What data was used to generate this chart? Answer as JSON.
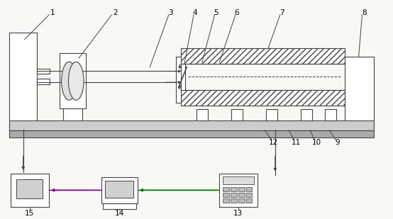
{
  "bg_color": "#f8f8f4",
  "line_color": "#444444",
  "green_color": "#007700",
  "purple_color": "#880088",
  "fig_w": 5.54,
  "fig_h": 3.09,
  "dpi": 100
}
